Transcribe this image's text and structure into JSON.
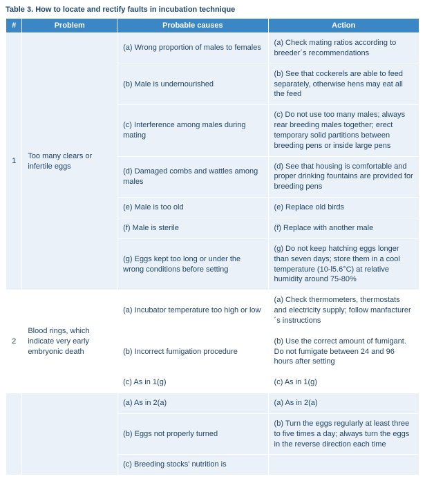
{
  "caption": "Table 3. How to locate and rectify faults in incubation technique",
  "headers": {
    "num": "#",
    "problem": "Problem",
    "cause": "Probable causes",
    "action": "Action"
  },
  "rows": [
    {
      "num": "1",
      "problem": "Too many clears or infertile eggs",
      "pairs": [
        {
          "cause": "(a) Wrong proportion of males to females",
          "action": "(a) Check mating ratios according to breeder´s recommendations"
        },
        {
          "cause": "(b) Male is undernourished",
          "action": "(b) See that cockerels are able to feed separately, otherwise hens may eat all the feed"
        },
        {
          "cause": "(c) Interference among males during mating",
          "action": "(c) Do not use too many males; always rear breeding males together; erect temporary solid partitions between breeding pens or inside large pens"
        },
        {
          "cause": "(d) Damaged combs and wattles among males",
          "action": "(d) See that housing is comfortable and proper drinking fountains are provided for breeding pens"
        },
        {
          "cause": "(e) Male is too old",
          "action": "(e) Replace old birds"
        },
        {
          "cause": "(f) Male is sterile",
          "action": "(f) Replace with another male"
        },
        {
          "cause": "(g) Eggs kept too long or under the wrong conditions before setting",
          "action": "(g) Do not keep hatching eggs longer than seven days; store them in a cool temperature (10-l5.6°C) at relative humidity around 75-80%"
        }
      ]
    },
    {
      "num": "2",
      "problem": "Blood rings, which indicate very early embryonic death",
      "pairs": [
        {
          "cause": "(a) Incubator temperature too high or low",
          "action": "(a) Check thermometers, thermostats and electricity supply; follow manfacturer´s instructions"
        },
        {
          "cause": "(b) Incorrect fumigation procedure",
          "action": "(b) Use the correct amount of fumigant. Do not fumigate between 24 and 96 hours after setting"
        },
        {
          "cause": "(c) As in 1(g)",
          "action": "(c) As in 1(g)"
        }
      ]
    },
    {
      "num": "",
      "problem": "",
      "pairs": [
        {
          "cause": "(a) As in 2(a)",
          "action": "(a) As in 2(a)"
        },
        {
          "cause": "(b) Eggs not properly turned",
          "action": "(b) Turn the eggs regularly at least three to five times a day; always turn the eggs in the reverse direction each time"
        },
        {
          "cause": "(c) Breeding stocks' nutrition is",
          "action": ""
        }
      ]
    }
  ],
  "style": {
    "header_bg": "#3b86c4",
    "header_fg": "#ffffff",
    "shade_bg": "#eaf1f8",
    "plain_bg": "#ffffff",
    "text_color": "#20456a",
    "font_family": "Verdana",
    "font_size_pt": 8
  }
}
